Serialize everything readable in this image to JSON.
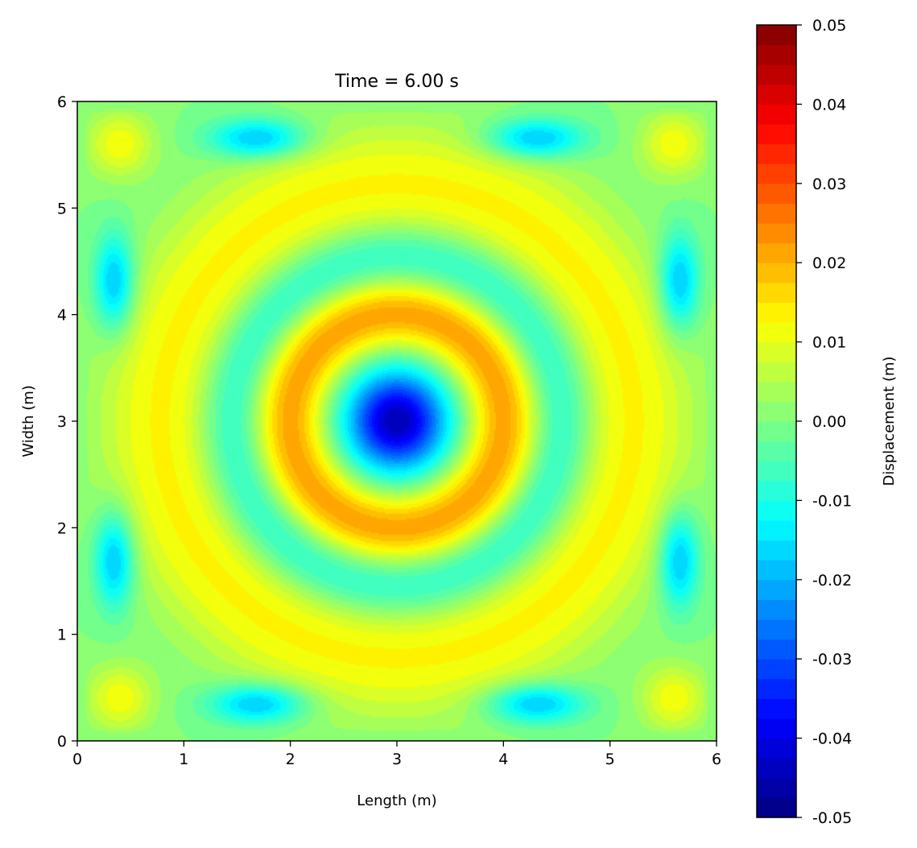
{
  "chart_data": {
    "type": "heatmap",
    "title": "Time = 6.00 s",
    "xlabel": "Length (m)",
    "ylabel": "Width (m)",
    "xlim": [
      0,
      6
    ],
    "ylim": [
      0,
      6
    ],
    "xticks": [
      "0",
      "1",
      "2",
      "3",
      "4",
      "5",
      "6"
    ],
    "yticks": [
      "0",
      "1",
      "2",
      "3",
      "4",
      "5",
      "6"
    ],
    "colorbar": {
      "label": "Displacement (m)",
      "range": [
        -0.05,
        0.05
      ],
      "levels": 40,
      "colormap": "jet",
      "ticks": [
        "-0.05",
        "-0.04",
        "-0.03",
        "-0.02",
        "-0.01",
        "0.00",
        "0.01",
        "0.02",
        "0.03",
        "0.04",
        "0.05"
      ]
    },
    "field_description": {
      "center": [
        3,
        3
      ],
      "center_value": -0.045,
      "ring_1": {
        "radius_m": 1.0,
        "value": 0.022
      },
      "ring_2": {
        "radius_m": 1.55,
        "value": -0.012
      },
      "ring_3": {
        "radius_m": 2.2,
        "value": 0.013
      },
      "boundary_value": 0.0,
      "edge_lobes": [
        {
          "x": 1.7,
          "y": 5.65,
          "value": -0.02
        },
        {
          "x": 4.3,
          "y": 5.65,
          "value": -0.02
        },
        {
          "x": 1.7,
          "y": 0.35,
          "value": -0.02
        },
        {
          "x": 4.3,
          "y": 0.35,
          "value": -0.02
        },
        {
          "x": 0.35,
          "y": 4.3,
          "value": -0.02
        },
        {
          "x": 0.35,
          "y": 1.7,
          "value": -0.02
        },
        {
          "x": 5.65,
          "y": 4.3,
          "value": -0.02
        },
        {
          "x": 5.65,
          "y": 1.7,
          "value": -0.02
        }
      ],
      "corner_lobes": [
        {
          "x": 0.4,
          "y": 0.4,
          "value": 0.012
        },
        {
          "x": 5.6,
          "y": 0.4,
          "value": 0.012
        },
        {
          "x": 0.4,
          "y": 5.6,
          "value": 0.012
        },
        {
          "x": 5.6,
          "y": 5.6,
          "value": 0.012
        }
      ]
    }
  }
}
